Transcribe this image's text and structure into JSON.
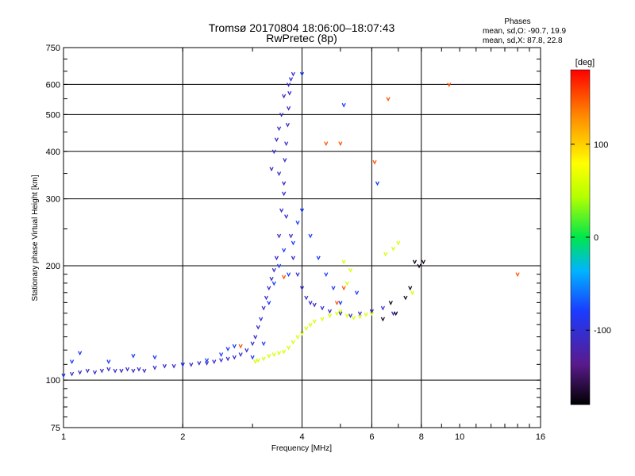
{
  "chart_data": {
    "type": "scatter",
    "title_line1": "Tromsø 20170804 18:06:00–18:07:43",
    "title_line2": "RwPretec (8p)",
    "stats_header": "Phases",
    "stats_line1": "mean, sd,O: -90.7, 19.9",
    "stats_line2": "mean, sd,X:  87.8, 22.8",
    "xlabel": "Frequency [MHz]",
    "ylabel": "Stationary phase Virtual Height [km]",
    "x_scale": "log",
    "y_scale": "log",
    "xlim": [
      1,
      16
    ],
    "ylim": [
      75,
      750
    ],
    "xticks": [
      1,
      2,
      4,
      6,
      8,
      10,
      16
    ],
    "xtick_labels": [
      "1",
      "2",
      "4",
      "6",
      "8",
      "10",
      "16"
    ],
    "yticks": [
      75,
      100,
      200,
      300,
      400,
      500,
      600,
      750
    ],
    "ytick_labels": [
      "75",
      "100",
      "200",
      "300",
      "400",
      "500",
      "600",
      "750"
    ],
    "grid_x": [
      2,
      4,
      6,
      8
    ],
    "grid_y": [
      100,
      200,
      300,
      400,
      500,
      600
    ],
    "colorbar": {
      "label": "[deg]",
      "range": [
        -180,
        180
      ],
      "ticks": [
        100,
        0,
        -100
      ],
      "tick_labels": [
        "100",
        "0",
        "-100"
      ]
    },
    "series": [
      {
        "phase": -105,
        "points": [
          [
            1.05,
            104
          ],
          [
            1.1,
            105
          ],
          [
            1.15,
            106
          ],
          [
            1.2,
            105
          ],
          [
            1.25,
            106
          ],
          [
            1.3,
            107
          ],
          [
            1.35,
            106
          ],
          [
            1.4,
            106
          ],
          [
            1.45,
            107
          ],
          [
            1.5,
            106
          ],
          [
            1.55,
            107
          ],
          [
            1.6,
            106
          ],
          [
            1.7,
            108
          ],
          [
            1.8,
            109
          ],
          [
            1.9,
            109
          ],
          [
            2.0,
            110
          ],
          [
            2.1,
            110
          ],
          [
            2.2,
            111
          ],
          [
            2.3,
            111
          ],
          [
            2.4,
            112
          ],
          [
            2.5,
            113
          ],
          [
            2.6,
            114
          ],
          [
            2.7,
            115
          ],
          [
            2.8,
            117
          ],
          [
            2.9,
            120
          ],
          [
            3.0,
            125
          ],
          [
            3.05,
            130
          ],
          [
            3.1,
            138
          ],
          [
            3.15,
            145
          ],
          [
            3.2,
            155
          ],
          [
            3.25,
            165
          ],
          [
            3.3,
            175
          ],
          [
            3.35,
            185
          ],
          [
            3.4,
            195
          ],
          [
            3.45,
            210
          ],
          [
            3.5,
            240
          ],
          [
            3.55,
            280
          ],
          [
            3.6,
            330
          ],
          [
            3.62,
            380
          ],
          [
            3.65,
            420
          ],
          [
            3.68,
            470
          ],
          [
            3.7,
            520
          ],
          [
            3.72,
            570
          ],
          [
            3.75,
            620
          ],
          [
            3.8,
            640
          ],
          [
            3.7,
            600
          ],
          [
            3.6,
            560
          ],
          [
            3.55,
            500
          ],
          [
            3.5,
            460
          ],
          [
            3.45,
            430
          ],
          [
            3.4,
            400
          ],
          [
            3.35,
            360
          ],
          [
            3.5,
            350
          ],
          [
            3.6,
            310
          ],
          [
            3.65,
            270
          ],
          [
            3.75,
            240
          ],
          [
            3.8,
            210
          ],
          [
            3.9,
            190
          ],
          [
            4.0,
            175
          ],
          [
            4.1,
            165
          ],
          [
            4.2,
            160
          ],
          [
            4.3,
            158
          ],
          [
            4.5,
            155
          ],
          [
            4.7,
            152
          ],
          [
            5.0,
            150
          ],
          [
            5.3,
            148
          ],
          [
            5.6,
            150
          ],
          [
            6.0,
            152
          ],
          [
            6.4,
            155
          ],
          [
            6.8,
            150
          ]
        ]
      },
      {
        "phase": -80,
        "points": [
          [
            1.0,
            103
          ],
          [
            1.05,
            112
          ],
          [
            1.1,
            118
          ],
          [
            1.3,
            112
          ],
          [
            1.5,
            116
          ],
          [
            1.7,
            115
          ],
          [
            2.0,
            110
          ],
          [
            2.3,
            113
          ],
          [
            2.5,
            117
          ],
          [
            2.6,
            121
          ],
          [
            2.7,
            123
          ],
          [
            3.0,
            115
          ],
          [
            3.2,
            125
          ],
          [
            3.3,
            160
          ],
          [
            3.4,
            180
          ],
          [
            3.5,
            200
          ],
          [
            3.6,
            220
          ],
          [
            3.7,
            190
          ],
          [
            3.8,
            230
          ],
          [
            3.9,
            260
          ],
          [
            4.0,
            280
          ],
          [
            4.2,
            240
          ],
          [
            4.4,
            210
          ],
          [
            4.6,
            190
          ],
          [
            4.8,
            175
          ],
          [
            5.0,
            160
          ],
          [
            5.5,
            170
          ],
          [
            6.2,
            330
          ],
          [
            4.0,
            640
          ],
          [
            5.1,
            530
          ]
        ]
      },
      {
        "phase": 60,
        "points": [
          [
            3.05,
            112
          ],
          [
            3.1,
            113
          ],
          [
            3.2,
            114
          ],
          [
            3.3,
            116
          ],
          [
            3.4,
            117
          ],
          [
            3.5,
            118
          ],
          [
            3.6,
            119
          ],
          [
            3.7,
            122
          ],
          [
            3.8,
            126
          ],
          [
            3.9,
            130
          ],
          [
            4.0,
            133
          ],
          [
            4.1,
            137
          ],
          [
            4.2,
            140
          ],
          [
            4.3,
            143
          ],
          [
            4.5,
            145
          ],
          [
            4.7,
            148
          ],
          [
            4.9,
            150
          ],
          [
            5.0,
            152
          ],
          [
            5.2,
            148
          ],
          [
            5.4,
            146
          ],
          [
            5.6,
            147
          ],
          [
            5.8,
            149
          ],
          [
            6.0,
            150
          ],
          [
            6.5,
            215
          ],
          [
            6.8,
            222
          ],
          [
            7.0,
            230
          ],
          [
            5.2,
            180
          ],
          [
            5.3,
            195
          ],
          [
            5.1,
            205
          ],
          [
            7.6,
            170
          ]
        ]
      },
      {
        "phase": 150,
        "points": [
          [
            2.8,
            123
          ],
          [
            3.6,
            187
          ],
          [
            4.9,
            160
          ],
          [
            5.1,
            175
          ],
          [
            6.6,
            550
          ],
          [
            4.6,
            420
          ],
          [
            5.0,
            420
          ],
          [
            6.1,
            375
          ],
          [
            9.4,
            600
          ],
          [
            14,
            190
          ]
        ]
      },
      {
        "phase": -170,
        "points": [
          [
            7.7,
            205
          ],
          [
            7.9,
            200
          ],
          [
            6.7,
            160
          ],
          [
            7.3,
            165
          ],
          [
            6.9,
            150
          ],
          [
            7.5,
            175
          ],
          [
            8.1,
            205
          ],
          [
            6.4,
            145
          ]
        ]
      }
    ]
  }
}
